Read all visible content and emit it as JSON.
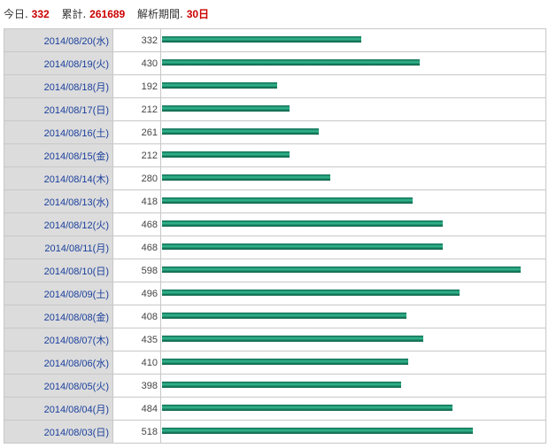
{
  "summary": {
    "today_label": "今日.",
    "today_value": "332",
    "total_label": "累計.",
    "total_value": "261689",
    "period_label": "解析期間.",
    "period_value": "30日"
  },
  "colors": {
    "bar": "#1d8a68",
    "highlight": "#cc0000",
    "date_link": "#1a3f9c"
  },
  "chart_data": {
    "type": "bar",
    "orientation": "horizontal",
    "categories": [
      "2014/08/20(水)",
      "2014/08/19(火)",
      "2014/08/18(月)",
      "2014/08/17(日)",
      "2014/08/16(土)",
      "2014/08/15(金)",
      "2014/08/14(木)",
      "2014/08/13(水)",
      "2014/08/12(火)",
      "2014/08/11(月)",
      "2014/08/10(日)",
      "2014/08/09(土)",
      "2014/08/08(金)",
      "2014/08/07(木)",
      "2014/08/06(水)",
      "2014/08/05(火)",
      "2014/08/04(月)",
      "2014/08/03(日)"
    ],
    "values": [
      332,
      430,
      192,
      212,
      261,
      212,
      280,
      418,
      468,
      468,
      598,
      496,
      408,
      435,
      410,
      398,
      484,
      518
    ],
    "xlim": [
      0,
      598
    ]
  }
}
